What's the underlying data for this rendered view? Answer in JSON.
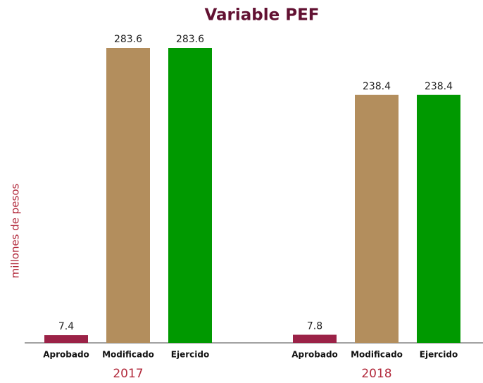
{
  "chart_data": {
    "type": "bar",
    "title": "Variable  PEF",
    "y_label": "millones de pesos",
    "categories": [
      "2017",
      "2018"
    ],
    "series": [
      {
        "name": "Aprobado",
        "color": "#9b2247",
        "values": [
          7.4,
          7.8
        ]
      },
      {
        "name": "Modificado",
        "color": "#b38e5d",
        "values": [
          283.6,
          238.4
        ]
      },
      {
        "name": "Ejercido",
        "color": "#009900",
        "values": [
          283.6,
          238.4
        ]
      }
    ]
  }
}
